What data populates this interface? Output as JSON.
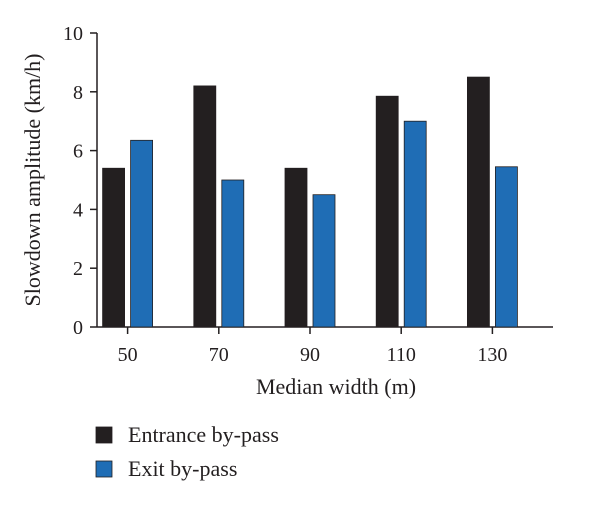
{
  "chart_data": {
    "type": "bar",
    "categories": [
      "50",
      "70",
      "90",
      "110",
      "130"
    ],
    "series": [
      {
        "name": "Entrance by-pass",
        "color": "#231f20",
        "values": [
          5.4,
          8.2,
          5.4,
          7.85,
          8.5
        ]
      },
      {
        "name": "Exit by-pass",
        "color": "#1f6db5",
        "values": [
          6.35,
          5.0,
          4.5,
          7.0,
          5.45
        ]
      }
    ],
    "xlabel": "Median width (m)",
    "ylabel": "Slowdown amplitude (km/h)",
    "ylim": [
      0,
      10
    ],
    "yticks": [
      0,
      2,
      4,
      6,
      8,
      10
    ],
    "grid": false,
    "legend_position": "bottom-left"
  }
}
